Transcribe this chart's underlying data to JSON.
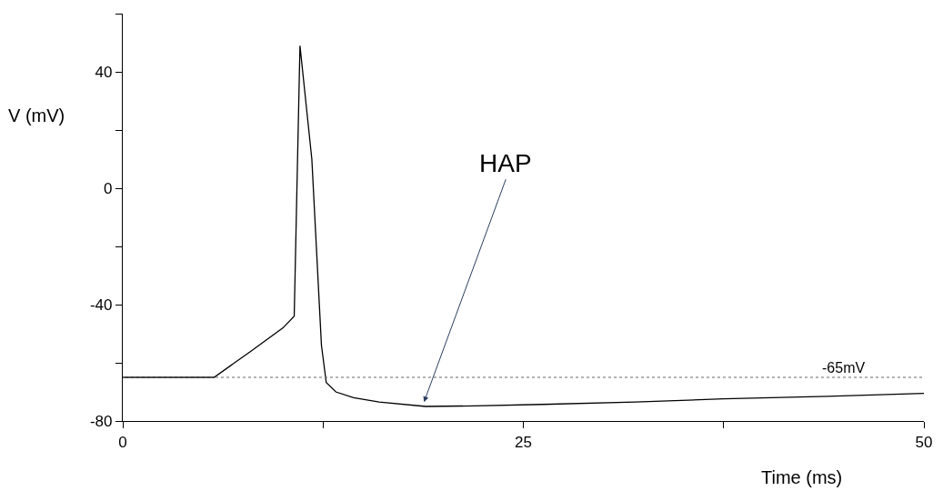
{
  "chart_data": {
    "type": "line",
    "xlabel": "Time (ms)",
    "ylabel": "V (mV)",
    "x": [
      0,
      5.7,
      8,
      10,
      10.7,
      11.06,
      11.8,
      12.4,
      12.7,
      13.3,
      14.4,
      16,
      18.9,
      22,
      26.2,
      32,
      37.5,
      44,
      50
    ],
    "series": [
      {
        "color": "#000000",
        "values": [
          -65,
          -65,
          -56,
          -48,
          -44,
          49,
          10,
          -54,
          -66.8,
          -70,
          -72,
          -73.5,
          -75,
          -74.8,
          -74.3,
          -73.5,
          -72.4,
          -71.5,
          -70.5
        ]
      }
    ],
    "xlim": [
      0,
      50
    ],
    "xticks": [
      0,
      {
        "value": 12.5,
        "label": null
      },
      25,
      {
        "value": 37.5,
        "label": null
      },
      50
    ],
    "ylim": [
      -80,
      60
    ],
    "yticks": [
      -80,
      {
        "value": -60,
        "label": null
      },
      -40,
      {
        "value": -20,
        "label": null
      },
      0,
      {
        "value": 20,
        "label": null
      },
      40,
      {
        "value": 60,
        "label": null
      }
    ],
    "marker": "none",
    "line_style": "solid",
    "ref_lines": [
      {
        "axis": "y",
        "value": -65,
        "label": "-65mV",
        "color": "#666666",
        "line_style": "dotted"
      }
    ],
    "annotations": [
      {
        "text": "HAP",
        "x": 18.8,
        "y": -73.5
      }
    ]
  }
}
